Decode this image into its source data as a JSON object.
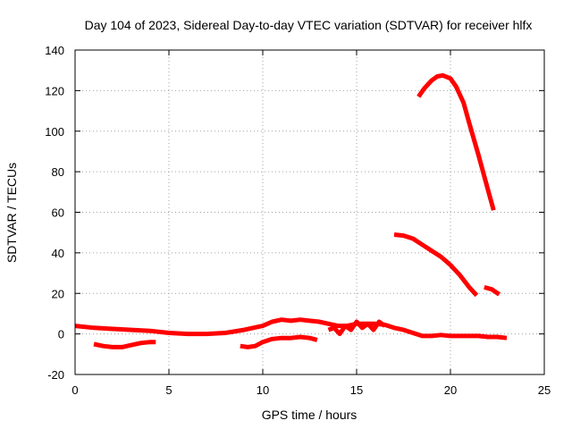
{
  "chart_data": {
    "type": "line",
    "title": "Day 104 of 2023, Sidereal Day-to-day VTEC variation (SDTVAR) for receiver hlfx",
    "xlabel": "GPS time / hours",
    "ylabel": "SDTVAR / TECUs",
    "xlim": [
      0,
      25
    ],
    "ylim": [
      -20,
      140
    ],
    "xticks": [
      0,
      5,
      10,
      15,
      20,
      25
    ],
    "yticks": [
      -20,
      0,
      20,
      40,
      60,
      80,
      100,
      120,
      140
    ],
    "xtick_labels": [
      "0",
      "5",
      "10",
      "15",
      "20",
      "25"
    ],
    "ytick_labels": [
      "-20",
      "0",
      "20",
      "40",
      "60",
      "80",
      "100",
      "120",
      "140"
    ],
    "grid": true,
    "legend": "none",
    "color": "#ff0000",
    "series": [
      {
        "name": "track-1",
        "x": [
          0,
          1,
          2,
          3,
          4,
          5,
          6,
          7,
          8,
          9,
          10,
          10.5,
          11,
          11.5,
          12,
          12.5,
          13,
          13.5,
          14,
          14.5,
          15,
          15.5,
          16,
          16.5,
          17,
          17.5,
          18,
          18.5,
          19,
          19.5,
          20,
          20.5,
          21,
          21.5,
          22,
          22.5,
          23
        ],
        "y": [
          4,
          3,
          2.5,
          2,
          1.5,
          0.5,
          0,
          0,
          0.5,
          2,
          4,
          6,
          7,
          6.5,
          7,
          6.5,
          6,
          5,
          4,
          4,
          5,
          5,
          5,
          4.5,
          3,
          2,
          0.5,
          -1,
          -1,
          -0.5,
          -1,
          -1,
          -1,
          -1,
          -1.5,
          -1.5,
          -2
        ]
      },
      {
        "name": "track-2",
        "x": [
          1,
          1.5,
          2,
          2.5,
          3,
          3.5,
          4,
          4.3
        ],
        "y": [
          -5,
          -6,
          -6.5,
          -6.5,
          -5.5,
          -4.5,
          -4,
          -4
        ]
      },
      {
        "name": "track-3",
        "x": [
          8.8,
          9.2,
          9.6,
          10,
          10.5,
          11,
          11.5,
          12,
          12.5,
          12.9
        ],
        "y": [
          -6,
          -6.5,
          -6,
          -4,
          -2.5,
          -2,
          -2,
          -1.5,
          -2,
          -3
        ]
      },
      {
        "name": "track-4",
        "x": [
          13.5,
          13.8,
          14.1,
          14.4,
          14.7,
          15,
          15.3,
          15.6,
          15.9,
          16.2,
          16.5
        ],
        "y": [
          2,
          3,
          0,
          4,
          2,
          6,
          3,
          5,
          2,
          6,
          4
        ]
      },
      {
        "name": "track-5",
        "x": [
          18.3,
          18.6,
          19,
          19.3,
          19.6,
          20,
          20.3,
          20.7,
          21,
          21.5,
          22,
          22.3
        ],
        "y": [
          117,
          121,
          125,
          127,
          127.5,
          126,
          122,
          114,
          104,
          88,
          71,
          61
        ]
      },
      {
        "name": "track-6",
        "x": [
          17,
          17.5,
          18,
          18.5,
          19,
          19.5,
          20,
          20.5,
          21,
          21.4
        ],
        "y": [
          49,
          48.5,
          47,
          44,
          41,
          38,
          34,
          29,
          23,
          19
        ]
      },
      {
        "name": "track-7",
        "x": [
          21.8,
          22.2,
          22.6
        ],
        "y": [
          23,
          22,
          19.5
        ]
      }
    ]
  }
}
